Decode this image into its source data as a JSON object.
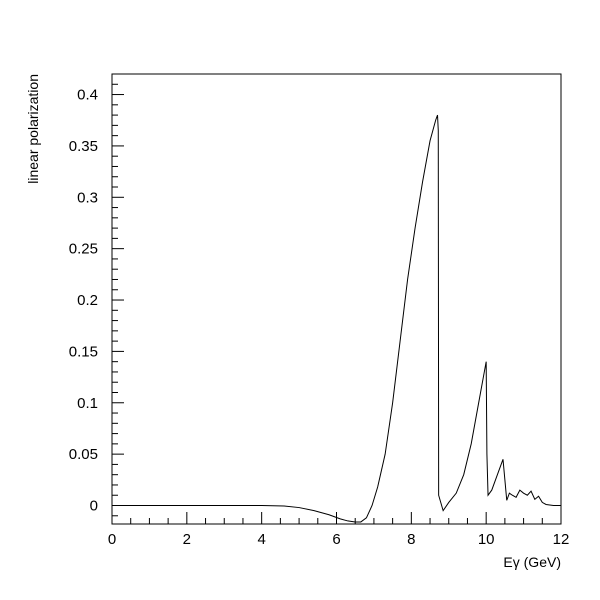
{
  "chart_data": {
    "type": "line",
    "title": "",
    "xlabel": "Eγ (GeV)",
    "ylabel": "linear polarization",
    "xlim": [
      0,
      12
    ],
    "ylim": [
      -0.018,
      0.42
    ],
    "x_ticks": [
      0,
      2,
      4,
      6,
      8,
      10,
      12
    ],
    "x_tick_labels": [
      "0",
      "2",
      "4",
      "6",
      "8",
      "10",
      "12"
    ],
    "y_ticks": [
      0,
      0.05,
      0.1,
      0.15,
      0.2,
      0.25,
      0.3,
      0.35,
      0.4
    ],
    "y_tick_labels": [
      "0",
      "0.05",
      "0.1",
      "0.15",
      "0.2",
      "0.25",
      "0.3",
      "0.35",
      "0.4"
    ],
    "grid": false,
    "legend": "none",
    "series": [
      {
        "x": [
          0,
          1,
          2,
          3,
          4,
          4.6,
          5,
          5.4,
          5.8,
          6.1,
          6.3,
          6.5,
          6.65,
          6.8,
          6.95,
          7.1,
          7.3,
          7.5,
          7.7,
          7.9,
          8.1,
          8.3,
          8.5,
          8.65,
          8.7,
          8.72,
          8.73,
          8.85,
          9.0,
          9.2,
          9.4,
          9.6,
          9.8,
          9.95,
          10.0,
          10.02,
          10.05,
          10.15,
          10.3,
          10.45,
          10.5,
          10.55,
          10.62,
          10.7,
          10.8,
          10.9,
          11.0,
          11.1,
          11.2,
          11.3,
          11.4,
          11.5,
          11.6,
          11.8,
          12.0
        ],
        "y": [
          0,
          0,
          0,
          0,
          0,
          -0.0005,
          -0.002,
          -0.005,
          -0.009,
          -0.013,
          -0.015,
          -0.016,
          -0.016,
          -0.012,
          0.0,
          0.018,
          0.05,
          0.1,
          0.16,
          0.22,
          0.27,
          0.315,
          0.355,
          0.375,
          0.38,
          0.365,
          0.01,
          -0.005,
          0.003,
          0.012,
          0.03,
          0.06,
          0.1,
          0.13,
          0.14,
          0.05,
          0.01,
          0.015,
          0.03,
          0.045,
          0.025,
          0.005,
          0.012,
          0.01,
          0.008,
          0.015,
          0.012,
          0.01,
          0.014,
          0.006,
          0.009,
          0.003,
          0.001,
          0,
          0
        ]
      }
    ]
  }
}
